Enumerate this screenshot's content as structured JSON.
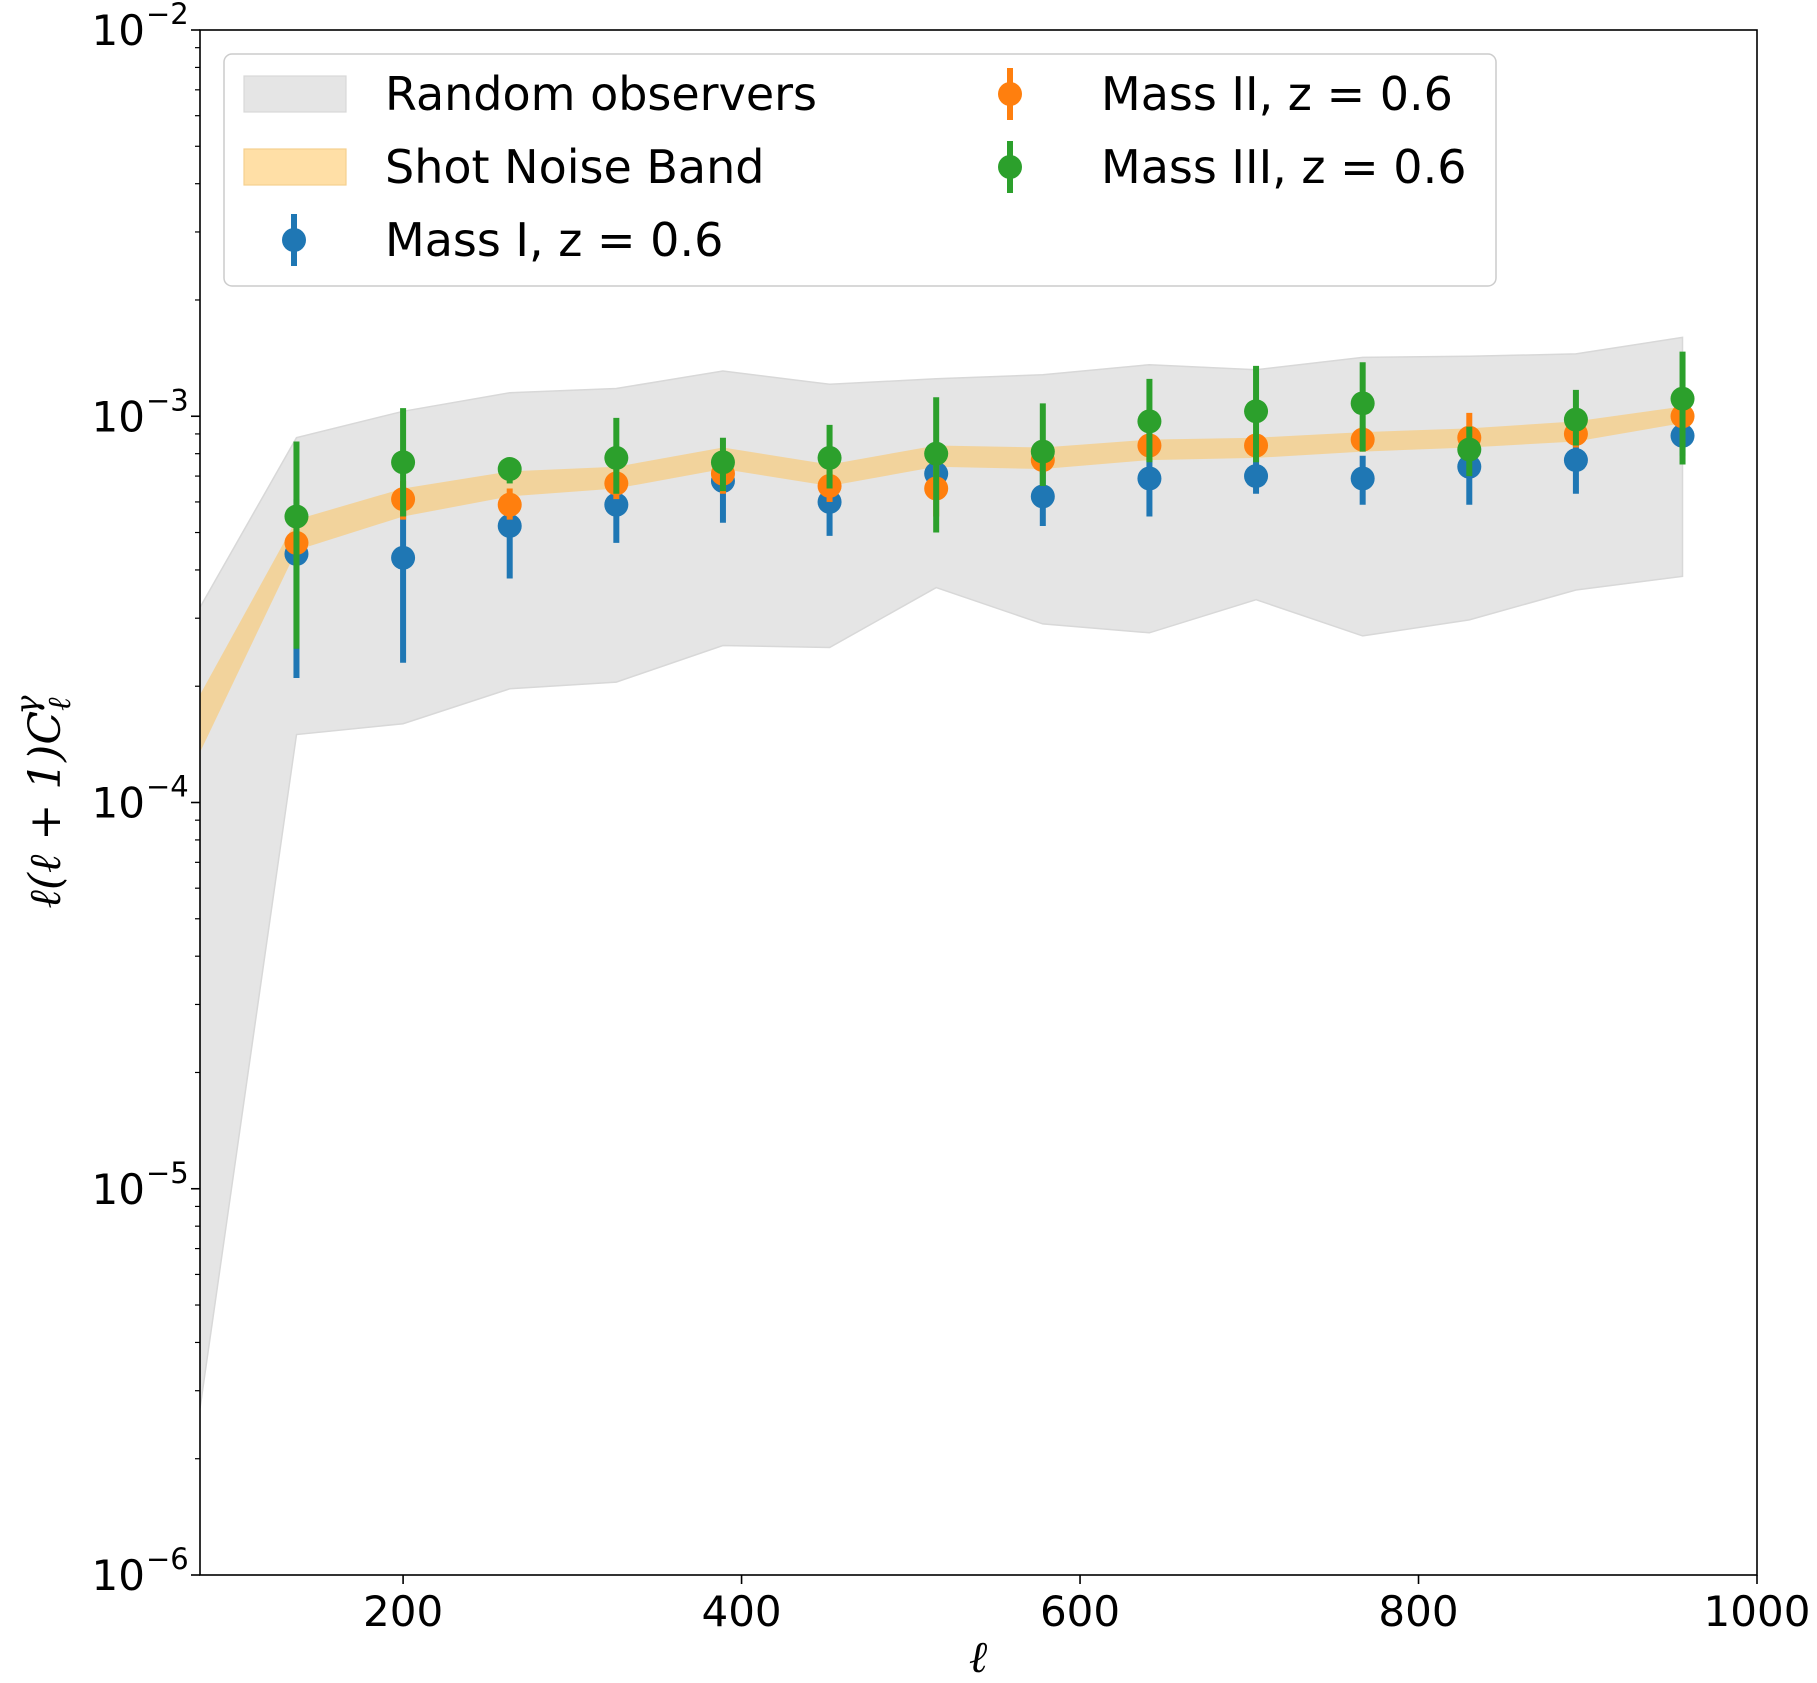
{
  "chart_data": {
    "type": "scatter",
    "title": "",
    "xlabel": "ℓ",
    "ylabel": "ℓ(ℓ + 1)C_ℓ^γ",
    "xlim": [
      80,
      1000
    ],
    "ylim": [
      1e-06,
      0.01
    ],
    "yscale": "log",
    "x_ticks": [
      200,
      400,
      600,
      800,
      1000
    ],
    "x_tick_labels": [
      "200",
      "400",
      "600",
      "800",
      "1000"
    ],
    "y_ticks": [
      1e-06,
      1e-05,
      0.0001,
      0.001,
      0.01
    ],
    "y_tick_labels": [
      {
        "base": "10",
        "exp": "−6"
      },
      {
        "base": "10",
        "exp": "−5"
      },
      {
        "base": "10",
        "exp": "−4"
      },
      {
        "base": "10",
        "exp": "−3"
      },
      {
        "base": "10",
        "exp": "−2"
      }
    ],
    "legend": {
      "position": "top",
      "entries": [
        {
          "label": "Random observers",
          "kind": "band",
          "color": "#e5e5e5"
        },
        {
          "label": "Shot Noise Band",
          "kind": "band",
          "color": "#ffdfa6"
        },
        {
          "label": "Mass I, z = 0.6",
          "kind": "errorbar",
          "color": "#1f77b4"
        },
        {
          "label": "Mass II, z = 0.6",
          "kind": "errorbar",
          "color": "#ff7f0e"
        },
        {
          "label": "Mass III, z = 0.6",
          "kind": "errorbar",
          "color": "#2ca02c"
        }
      ]
    },
    "bands": [
      {
        "name": "Random observers",
        "color": "#e5e5e5",
        "edge": "#d8d8d8",
        "x": [
          80,
          137,
          200,
          263,
          326,
          389,
          452,
          515,
          578,
          641,
          704,
          767,
          830,
          893,
          956
        ],
        "lower": [
          2.7e-06,
          0.00015,
          0.00016,
          0.000197,
          0.000205,
          0.000255,
          0.000252,
          0.00036,
          0.00029,
          0.000275,
          0.000335,
          0.00027,
          0.000297,
          0.000355,
          0.000385
        ],
        "upper": [
          0.00032,
          0.00088,
          0.00103,
          0.00115,
          0.00118,
          0.00131,
          0.00121,
          0.00125,
          0.00128,
          0.00136,
          0.00132,
          0.00142,
          0.00143,
          0.00145,
          0.0016
        ]
      },
      {
        "name": "Shot Noise Band",
        "color": "#f5d08f",
        "x": [
          80,
          137,
          200,
          263,
          326,
          389,
          452,
          515,
          578,
          641,
          704,
          767,
          830,
          893,
          956
        ],
        "lower": [
          0.000135,
          0.00045,
          0.00055,
          0.00062,
          0.00065,
          0.00073,
          0.00066,
          0.00074,
          0.00073,
          0.00077,
          0.00078,
          0.00081,
          0.00083,
          0.00086,
          0.00096
        ],
        "upper": [
          0.00019,
          0.00054,
          0.00065,
          0.00072,
          0.00074,
          0.00083,
          0.00075,
          0.00084,
          0.00083,
          0.00087,
          0.00088,
          0.00091,
          0.00093,
          0.00097,
          0.00106
        ]
      }
    ],
    "series": [
      {
        "name": "Mass I, z = 0.6",
        "color": "#1f77b4",
        "x": [
          137,
          200,
          263,
          326,
          389,
          452,
          515,
          578,
          641,
          704,
          767,
          830,
          893,
          956
        ],
        "y": [
          0.00044,
          0.00043,
          0.00052,
          0.00059,
          0.00068,
          0.0006,
          0.00071,
          0.00062,
          0.00069,
          0.0007,
          0.00069,
          0.00074,
          0.00077,
          0.00089
        ],
        "err_low": [
          0.00021,
          0.00023,
          0.00038,
          0.00047,
          0.00053,
          0.00049,
          0.00064,
          0.00052,
          0.00055,
          0.00063,
          0.00059,
          0.00059,
          0.00063,
          0.00079
        ],
        "err_high": [
          0.00061,
          0.00062,
          0.00063,
          0.00068,
          0.00078,
          0.0007,
          0.00078,
          0.00073,
          0.0008,
          0.00078,
          0.00079,
          0.00085,
          0.00089,
          0.00098
        ]
      },
      {
        "name": "Mass II, z = 0.6",
        "color": "#ff7f0e",
        "x": [
          137,
          200,
          263,
          326,
          389,
          452,
          515,
          578,
          641,
          704,
          767,
          830,
          893,
          956
        ],
        "y": [
          0.00047,
          0.00061,
          0.00059,
          0.00067,
          0.00071,
          0.00066,
          0.00065,
          0.00077,
          0.00084,
          0.00084,
          0.00087,
          0.00088,
          0.0009,
          0.001
        ],
        "err_low": [
          0.00041,
          0.00054,
          0.00054,
          0.00061,
          0.00063,
          0.0006,
          0.00055,
          0.00071,
          0.00077,
          0.00078,
          0.00081,
          0.0008,
          0.00083,
          0.00094
        ],
        "err_high": [
          0.00053,
          0.00068,
          0.00065,
          0.00074,
          0.00079,
          0.00072,
          0.00075,
          0.00083,
          0.00091,
          0.0009,
          0.00094,
          0.00102,
          0.00097,
          0.00107
        ]
      },
      {
        "name": "Mass III, z = 0.6",
        "color": "#2ca02c",
        "x": [
          137,
          200,
          263,
          326,
          389,
          452,
          515,
          578,
          641,
          704,
          767,
          830,
          893,
          956
        ],
        "y": [
          0.00055,
          0.00076,
          0.00073,
          0.00078,
          0.00076,
          0.00078,
          0.0008,
          0.00081,
          0.00097,
          0.00103,
          0.00108,
          0.00082,
          0.00098,
          0.00111
        ],
        "err_low": [
          0.00025,
          0.00055,
          0.00067,
          0.00063,
          0.00064,
          0.00065,
          0.0005,
          0.00066,
          0.00076,
          0.00076,
          0.00081,
          0.0007,
          0.00084,
          0.00075
        ],
        "err_high": [
          0.00086,
          0.00105,
          0.00077,
          0.00099,
          0.00088,
          0.00095,
          0.00112,
          0.00108,
          0.00125,
          0.00135,
          0.00138,
          0.00094,
          0.00117,
          0.00147
        ]
      }
    ]
  }
}
